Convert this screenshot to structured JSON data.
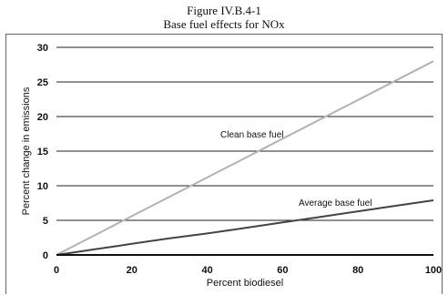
{
  "figure": {
    "label": "Figure IV.B.4-1",
    "caption": "Base fuel effects for NOx"
  },
  "chart_data": {
    "type": "line",
    "xlabel": "Percent biodiesel",
    "ylabel": "Percent change in emissions",
    "xlim": [
      0,
      100
    ],
    "ylim": [
      0,
      30
    ],
    "xticks": [
      "0",
      "20",
      "40",
      "60",
      "80",
      "100"
    ],
    "yticks": [
      "0",
      "5",
      "10",
      "15",
      "20",
      "25",
      "30"
    ],
    "grid": "horizontal",
    "series": [
      {
        "name": "Clean base fuel",
        "color": "#b3b3b3",
        "x": [
          0,
          20,
          40,
          60,
          80,
          100
        ],
        "y": [
          0,
          5.6,
          11.2,
          16.8,
          22.4,
          28
        ]
      },
      {
        "name": "Average base fuel",
        "color": "#444444",
        "x": [
          0,
          5,
          10,
          15,
          20,
          30,
          40,
          50,
          60,
          70,
          80,
          90,
          100
        ],
        "y": [
          0,
          0.4,
          0.8,
          1.2,
          1.6,
          2.4,
          3.1,
          3.9,
          4.7,
          5.5,
          6.3,
          7.1,
          7.9
        ]
      }
    ]
  }
}
